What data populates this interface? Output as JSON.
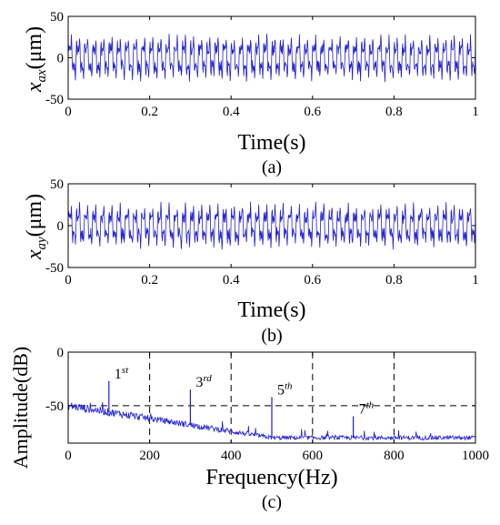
{
  "chart_data": [
    {
      "type": "line",
      "panel": "a",
      "caption": "(a)",
      "xlabel": "Time(s)",
      "ylabel_main": "x",
      "ylabel_sub": "ax",
      "ylabel_unit": "(μm)",
      "xlim": [
        0,
        1
      ],
      "ylim": [
        -50,
        50
      ],
      "xticks": [
        "0",
        "0.2",
        "0.4",
        "0.6",
        "0.8",
        "1"
      ],
      "yticks": [
        "50",
        "0",
        "-50"
      ],
      "ytick_values": [
        50,
        0,
        -50
      ],
      "dashed_gridlines_y": [
        50
      ],
      "signal": {
        "period_s": 0.02,
        "peak_amplitude_um": 28,
        "samples": 900
      },
      "color": "#1f1fd6"
    },
    {
      "type": "line",
      "panel": "b",
      "caption": "(b)",
      "xlabel": "Time(s)",
      "ylabel_main": "x",
      "ylabel_sub": "ay",
      "ylabel_unit": "(μm)",
      "xlim": [
        0,
        1
      ],
      "ylim": [
        -50,
        50
      ],
      "xticks": [
        "0",
        "0.2",
        "0.4",
        "0.6",
        "0.8",
        "1"
      ],
      "yticks": [
        "50",
        "0",
        "-50"
      ],
      "ytick_values": [
        50,
        0,
        -50
      ],
      "dashed_gridlines_y": [
        50
      ],
      "signal": {
        "period_s": 0.02,
        "peak_amplitude_um": 27,
        "samples": 900
      },
      "color": "#1f1fd6"
    },
    {
      "type": "line",
      "panel": "c",
      "caption": "(c)",
      "xlabel": "Frequency(Hz)",
      "ylabel": "Amplitude(dB)",
      "xlim": [
        0,
        1000
      ],
      "ylim": [
        -85,
        0
      ],
      "xticks": [
        "0",
        "200",
        "400",
        "600",
        "800",
        "1000"
      ],
      "yticks": [
        "0",
        "-50"
      ],
      "ytick_values": [
        0,
        -50
      ],
      "dashed_gridlines_x": [
        200,
        400,
        600,
        800
      ],
      "dashed_gridlines_y": [
        0,
        -50
      ],
      "peaks": [
        {
          "freq": 100,
          "db": -27,
          "label": "1",
          "sup": "st"
        },
        {
          "freq": 300,
          "db": -35,
          "label": "3",
          "sup": "rd"
        },
        {
          "freq": 500,
          "db": -42,
          "label": "5",
          "sup": "th"
        },
        {
          "freq": 700,
          "db": -60,
          "label": "7",
          "sup": "th"
        }
      ],
      "noise_floor": {
        "start_db": -50,
        "end_db": -80
      },
      "color": "#1f1fd6"
    }
  ]
}
